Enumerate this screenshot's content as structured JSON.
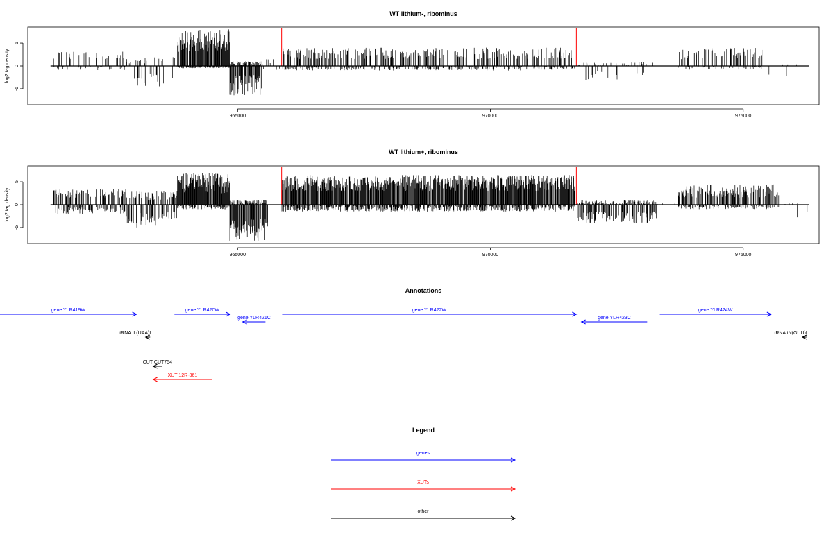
{
  "chart_data": [
    {
      "type": "bar",
      "title": "WT lithium-, ribominus",
      "ylabel": "log2 tag density",
      "xlim": [
        960850,
        976500
      ],
      "ylim": [
        -8.5,
        8.5
      ],
      "x_ticks": [
        965000,
        970000,
        975000
      ],
      "y_ticks": [
        -5,
        0,
        5
      ],
      "baseline": [
        961300,
        976300
      ],
      "highlight_color": "#ff0000",
      "highlight_x": [
        965870,
        971700
      ],
      "highlight_value": 8.3,
      "bar_color": "#000000",
      "regions": [
        {
          "from": 961350,
          "to": 962800,
          "pos": [
            1.5,
            3.2
          ],
          "neg": [
            0,
            1
          ],
          "density": 0.15
        },
        {
          "from": 962800,
          "to": 963800,
          "pos": [
            0.5,
            2.0
          ],
          "neg": [
            1.5,
            4.5
          ],
          "density": 0.18
        },
        {
          "from": 963800,
          "to": 964850,
          "pos": [
            3.0,
            8.0
          ],
          "neg": [
            0,
            0.5
          ],
          "density": 0.9
        },
        {
          "from": 964850,
          "to": 965500,
          "pos": [
            0,
            1
          ],
          "neg": [
            2.0,
            6.5
          ],
          "density": 0.9
        },
        {
          "from": 965500,
          "to": 965850,
          "pos": [
            0.5,
            1.5
          ],
          "neg": [
            0.5,
            1.5
          ],
          "density": 0.1
        },
        {
          "from": 965880,
          "to": 971680,
          "pos": [
            1.5,
            4.0
          ],
          "neg": [
            0,
            1
          ],
          "density": 0.4
        },
        {
          "from": 971720,
          "to": 973200,
          "pos": [
            0,
            0.8
          ],
          "neg": [
            1.0,
            3.2
          ],
          "density": 0.15
        },
        {
          "from": 973300,
          "to": 973700,
          "pos": [
            0,
            0.5
          ],
          "neg": [
            0,
            0.5
          ],
          "density": 0.03
        },
        {
          "from": 973700,
          "to": 975400,
          "pos": [
            1.5,
            4.0
          ],
          "neg": [
            0,
            0.8
          ],
          "density": 0.25
        },
        {
          "from": 975400,
          "to": 976300,
          "pos": [
            0,
            0.5
          ],
          "neg": [
            0,
            4.0
          ],
          "density": 0.02
        }
      ]
    },
    {
      "type": "bar",
      "title": "WT lithium+, ribominus",
      "ylabel": "log2 tag density",
      "xlim": [
        960850,
        976500
      ],
      "ylim": [
        -8.5,
        8.5
      ],
      "x_ticks": [
        965000,
        970000,
        975000
      ],
      "y_ticks": [
        -5,
        0,
        5
      ],
      "baseline": [
        961300,
        976300
      ],
      "highlight_color": "#ff0000",
      "highlight_x": [
        965870,
        971700
      ],
      "highlight_value": 8.3,
      "bar_color": "#000000",
      "regions": [
        {
          "from": 961350,
          "to": 962800,
          "pos": [
            1.5,
            3.5
          ],
          "neg": [
            0.5,
            2.0
          ],
          "density": 0.45
        },
        {
          "from": 962800,
          "to": 963800,
          "pos": [
            1.0,
            3.0
          ],
          "neg": [
            1.5,
            5.0
          ],
          "density": 0.45
        },
        {
          "from": 963800,
          "to": 964850,
          "pos": [
            2.5,
            7.0
          ],
          "neg": [
            0,
            1
          ],
          "density": 0.85
        },
        {
          "from": 964850,
          "to": 965600,
          "pos": [
            0,
            1
          ],
          "neg": [
            3.0,
            8.0
          ],
          "density": 0.95
        },
        {
          "from": 965880,
          "to": 971680,
          "pos": [
            3.0,
            6.5
          ],
          "neg": [
            0,
            1.5
          ],
          "density": 0.85
        },
        {
          "from": 971720,
          "to": 973300,
          "pos": [
            0,
            1
          ],
          "neg": [
            1.5,
            4.0
          ],
          "density": 0.6
        },
        {
          "from": 973300,
          "to": 973700,
          "pos": [
            0,
            0.5
          ],
          "neg": [
            0,
            0.5
          ],
          "density": 0.03
        },
        {
          "from": 973700,
          "to": 975700,
          "pos": [
            1.5,
            4.5
          ],
          "neg": [
            0,
            1
          ],
          "density": 0.55
        },
        {
          "from": 975700,
          "to": 976300,
          "pos": [
            0,
            0.5
          ],
          "neg": [
            0,
            4.0
          ],
          "density": 0.04
        }
      ]
    }
  ],
  "annotations": {
    "title": "Annotations",
    "features": [
      {
        "label": "gene YLR419W",
        "from": 960000,
        "to": 963000,
        "row": 0,
        "strand": "+",
        "kind": "gene"
      },
      {
        "label": "gene YLR420W",
        "from": 963750,
        "to": 964850,
        "row": 0,
        "strand": "+",
        "kind": "gene"
      },
      {
        "label": "gene YLR421C",
        "from": 965100,
        "to": 965550,
        "row": 1,
        "strand": "-",
        "kind": "gene"
      },
      {
        "label": "gene YLR422W",
        "from": 965880,
        "to": 971700,
        "row": 0,
        "strand": "+",
        "kind": "gene"
      },
      {
        "label": "gene YLR423C",
        "from": 971800,
        "to": 973100,
        "row": 1,
        "strand": "-",
        "kind": "gene"
      },
      {
        "label": "gene YLR424W",
        "from": 973350,
        "to": 975550,
        "row": 0,
        "strand": "+",
        "kind": "gene"
      },
      {
        "label": "tRNA tL(UAA)L",
        "from": 963180,
        "to": 963270,
        "row": 2,
        "strand": "-",
        "kind": "other"
      },
      {
        "label": "tRNA tN(GUU)L",
        "from": 976170,
        "to": 976250,
        "row": 2,
        "strand": "-",
        "kind": "other"
      },
      {
        "label": "CUT CUT754",
        "from": 963330,
        "to": 963500,
        "row": 4,
        "strand": "-",
        "kind": "other"
      },
      {
        "label": "XUT 12R-361",
        "from": 963330,
        "to": 964490,
        "row": 5,
        "strand": "-",
        "kind": "xut"
      }
    ]
  },
  "legend": {
    "title": "Legend",
    "items": [
      {
        "label": "genes",
        "color": "#0000ff"
      },
      {
        "label": "XUTs",
        "color": "#ff0000"
      },
      {
        "label": "other",
        "color": "#000000"
      }
    ]
  },
  "colors": {
    "gene": "#0000ff",
    "xut": "#ff0000",
    "other": "#000000"
  }
}
